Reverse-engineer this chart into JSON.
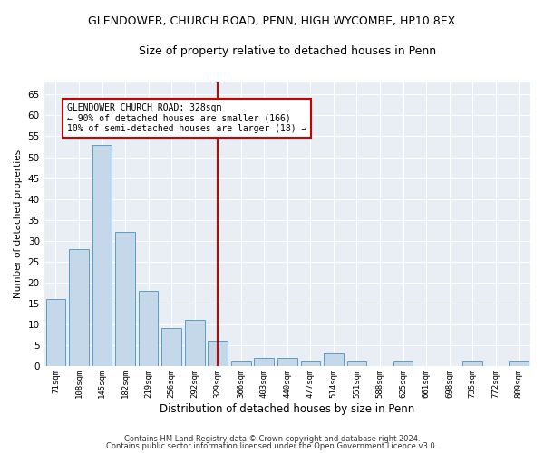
{
  "title1": "GLENDOWER, CHURCH ROAD, PENN, HIGH WYCOMBE, HP10 8EX",
  "title2": "Size of property relative to detached houses in Penn",
  "xlabel": "Distribution of detached houses by size in Penn",
  "ylabel": "Number of detached properties",
  "footer1": "Contains HM Land Registry data © Crown copyright and database right 2024.",
  "footer2": "Contains public sector information licensed under the Open Government Licence v3.0.",
  "categories": [
    "71sqm",
    "108sqm",
    "145sqm",
    "182sqm",
    "219sqm",
    "256sqm",
    "292sqm",
    "329sqm",
    "366sqm",
    "403sqm",
    "440sqm",
    "477sqm",
    "514sqm",
    "551sqm",
    "588sqm",
    "625sqm",
    "661sqm",
    "698sqm",
    "735sqm",
    "772sqm",
    "809sqm"
  ],
  "values": [
    16,
    28,
    53,
    32,
    18,
    9,
    11,
    6,
    1,
    2,
    2,
    1,
    3,
    1,
    0,
    1,
    0,
    0,
    1,
    0,
    1
  ],
  "bar_color": "#c5d8ea",
  "bar_edge_color": "#5b9dc8",
  "vline_x_index": 7,
  "vline_color": "#cc0000",
  "annotation_title": "GLENDOWER CHURCH ROAD: 328sqm",
  "annotation_line1": "← 90% of detached houses are smaller (166)",
  "annotation_line2": "10% of semi-detached houses are larger (18) →",
  "annotation_box_color": "#ffffff",
  "annotation_box_edge": "#cc0000",
  "ylim": [
    0,
    68
  ],
  "yticks": [
    0,
    5,
    10,
    15,
    20,
    25,
    30,
    35,
    40,
    45,
    50,
    55,
    60,
    65
  ],
  "fig_background": "#ffffff",
  "ax_background": "#e8eef4",
  "grid_color": "#ffffff"
}
